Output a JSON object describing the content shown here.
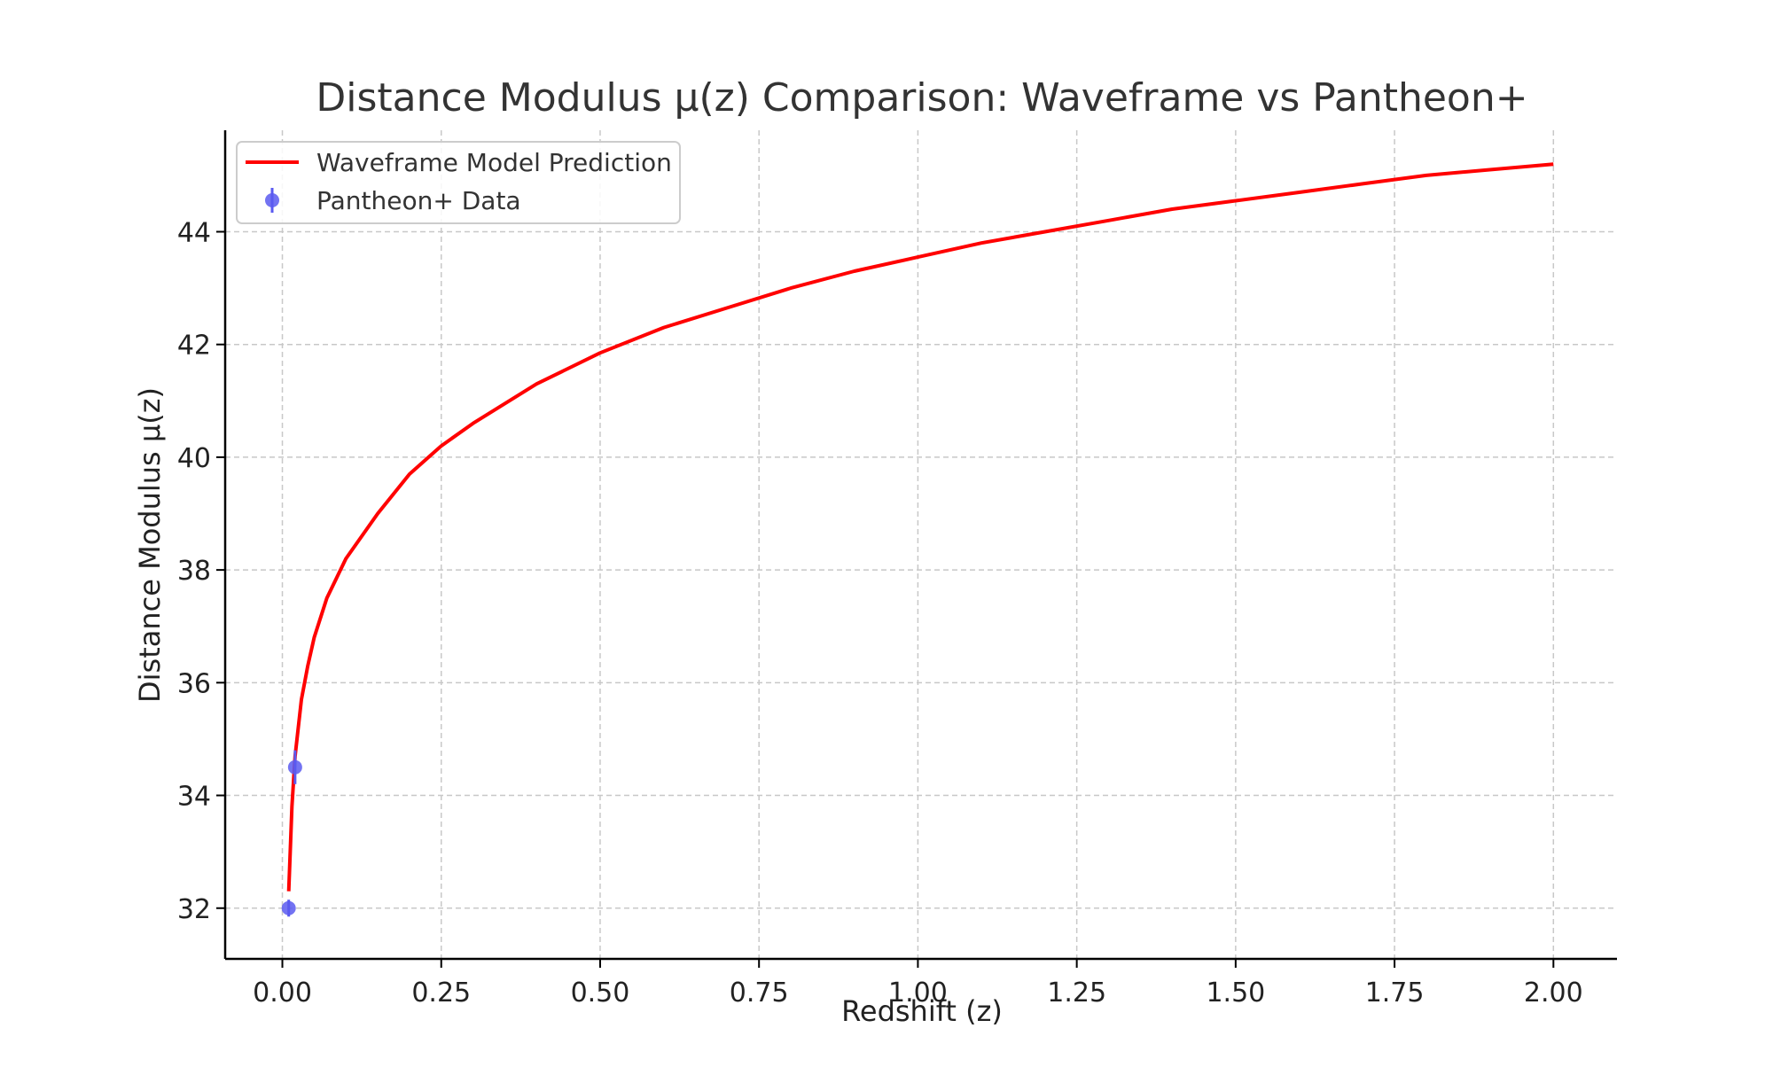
{
  "chart_data": {
    "type": "line",
    "title": "Distance Modulus μ(z) Comparison: Waveframe vs Pantheon+",
    "xlabel": "Redshift (z)",
    "ylabel": "Distance Modulus μ(z)",
    "xlim": [
      -0.09,
      2.1
    ],
    "ylim": [
      31.1,
      45.8
    ],
    "xticks": [
      0,
      0.25,
      0.5,
      0.75,
      1.0,
      1.25,
      1.5,
      1.75,
      2.0
    ],
    "xtick_labels": [
      "0.00",
      "0.25",
      "0.50",
      "0.75",
      "1.00",
      "1.25",
      "1.50",
      "1.75",
      "2.00"
    ],
    "yticks": [
      32,
      34,
      36,
      38,
      40,
      42,
      44
    ],
    "ytick_labels": [
      "32",
      "34",
      "36",
      "38",
      "40",
      "42",
      "44"
    ],
    "grid": true,
    "legend_position": "top-left",
    "series": [
      {
        "name": "Waveframe Model Prediction",
        "kind": "line",
        "color": "#ff0000",
        "x": [
          0.01,
          0.015,
          0.02,
          0.03,
          0.04,
          0.05,
          0.07,
          0.1,
          0.15,
          0.2,
          0.25,
          0.3,
          0.4,
          0.5,
          0.6,
          0.7,
          0.8,
          0.9,
          1.0,
          1.1,
          1.2,
          1.3,
          1.4,
          1.5,
          1.6,
          1.7,
          1.8,
          1.9,
          2.0
        ],
        "y": [
          32.3,
          33.8,
          34.7,
          35.7,
          36.3,
          36.8,
          37.5,
          38.2,
          39.0,
          39.7,
          40.2,
          40.6,
          41.3,
          41.85,
          42.3,
          42.65,
          43.0,
          43.3,
          43.55,
          43.8,
          44.0,
          44.2,
          44.4,
          44.55,
          44.7,
          44.85,
          45.0,
          45.1,
          45.2
        ]
      },
      {
        "name": "Pantheon+ Data",
        "kind": "errorbar",
        "color": "#5a5af0",
        "x": [
          0.01,
          0.02
        ],
        "y": [
          32.0,
          34.5
        ],
        "yerr": [
          0.15,
          0.3
        ]
      }
    ]
  }
}
